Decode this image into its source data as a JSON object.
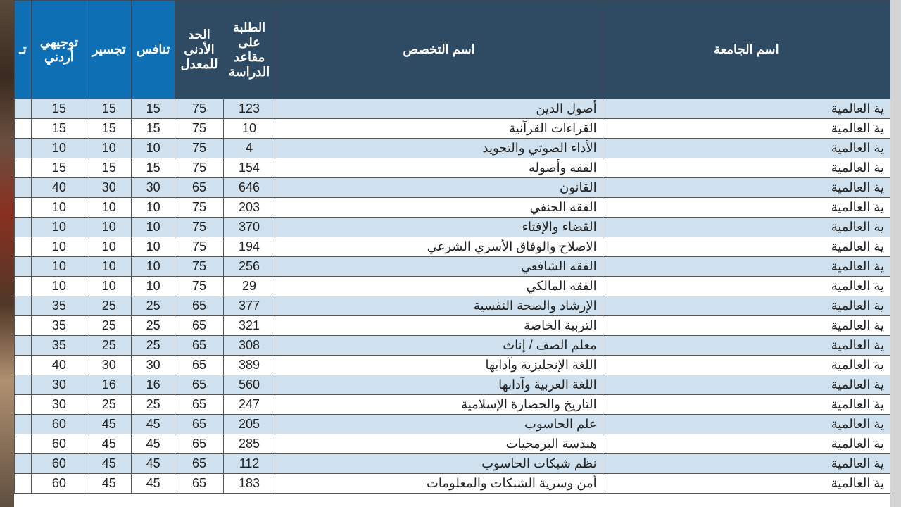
{
  "colors": {
    "header_dark": "#2f4a63",
    "header_light": "#0f6fb5",
    "row_even": "#cfe1ee",
    "row_odd": "#ffffff",
    "grid": "#555555",
    "header_text": "#ffffff",
    "cell_text": "#222222"
  },
  "typography": {
    "header_fontsize_pt": 14,
    "cell_fontsize_pt": 14,
    "font_family": "Arial"
  },
  "table": {
    "type": "table",
    "columns": [
      {
        "key": "university",
        "label": "اسم الجامعة",
        "header_style": "dark",
        "align": "right"
      },
      {
        "key": "specialty",
        "label": "اسم التخصص",
        "header_style": "dark",
        "align": "right"
      },
      {
        "key": "seats",
        "label": "الطلبة على مقاعد الدراسة",
        "header_style": "dark",
        "align": "center"
      },
      {
        "key": "min_gpa",
        "label": "الحد الأدنى للمعدل",
        "header_style": "dark",
        "align": "center"
      },
      {
        "key": "compete",
        "label": "تنافس",
        "header_style": "light",
        "align": "center"
      },
      {
        "key": "bridging",
        "label": "تجسير",
        "header_style": "light",
        "align": "center"
      },
      {
        "key": "tawjihi",
        "label": "توجيهي أردني",
        "header_style": "light",
        "align": "center"
      },
      {
        "key": "edge",
        "label": "تـ",
        "header_style": "light",
        "align": "center"
      }
    ],
    "rows": [
      {
        "university": "ية العالمية",
        "specialty": "أصول الدين",
        "seats": 123,
        "min_gpa": 75,
        "compete": 15,
        "bridging": 15,
        "tawjihi": 15
      },
      {
        "university": "ية العالمية",
        "specialty": "القراءات القرآنية",
        "seats": 10,
        "min_gpa": 75,
        "compete": 15,
        "bridging": 15,
        "tawjihi": 15
      },
      {
        "university": "ية العالمية",
        "specialty": "الأداء الصوتي والتجويد",
        "seats": 4,
        "min_gpa": 75,
        "compete": 10,
        "bridging": 10,
        "tawjihi": 10
      },
      {
        "university": "ية العالمية",
        "specialty": "الفقه وأصوله",
        "seats": 154,
        "min_gpa": 75,
        "compete": 15,
        "bridging": 15,
        "tawjihi": 15
      },
      {
        "university": "ية العالمية",
        "specialty": "القانون",
        "seats": 646,
        "min_gpa": 65,
        "compete": 30,
        "bridging": 30,
        "tawjihi": 40
      },
      {
        "university": "ية العالمية",
        "specialty": "الفقه الحنفي",
        "seats": 203,
        "min_gpa": 75,
        "compete": 10,
        "bridging": 10,
        "tawjihi": 10
      },
      {
        "university": "ية العالمية",
        "specialty": "القضاء والإفتاء",
        "seats": 370,
        "min_gpa": 75,
        "compete": 10,
        "bridging": 10,
        "tawjihi": 10
      },
      {
        "university": "ية العالمية",
        "specialty": "الاصلاح والوفاق الأسري الشرعي",
        "seats": 194,
        "min_gpa": 75,
        "compete": 10,
        "bridging": 10,
        "tawjihi": 10
      },
      {
        "university": "ية العالمية",
        "specialty": "الفقه الشافعي",
        "seats": 256,
        "min_gpa": 75,
        "compete": 10,
        "bridging": 10,
        "tawjihi": 10
      },
      {
        "university": "ية العالمية",
        "specialty": "الفقه المالكي",
        "seats": 29,
        "min_gpa": 75,
        "compete": 10,
        "bridging": 10,
        "tawjihi": 10
      },
      {
        "university": "ية العالمية",
        "specialty": "الإرشاد والصحة النفسية",
        "seats": 377,
        "min_gpa": 65,
        "compete": 25,
        "bridging": 25,
        "tawjihi": 35
      },
      {
        "university": "ية العالمية",
        "specialty": "التربية الخاصة",
        "seats": 321,
        "min_gpa": 65,
        "compete": 25,
        "bridging": 25,
        "tawjihi": 35
      },
      {
        "university": "ية العالمية",
        "specialty": "معلم الصف / إناث",
        "seats": 308,
        "min_gpa": 65,
        "compete": 25,
        "bridging": 25,
        "tawjihi": 35
      },
      {
        "university": "ية العالمية",
        "specialty": "اللغة الإنجليزية وآدابها",
        "seats": 389,
        "min_gpa": 65,
        "compete": 30,
        "bridging": 30,
        "tawjihi": 40
      },
      {
        "university": "ية العالمية",
        "specialty": "اللغة العربية وآدابها",
        "seats": 560,
        "min_gpa": 65,
        "compete": 16,
        "bridging": 16,
        "tawjihi": 30
      },
      {
        "university": "ية العالمية",
        "specialty": "التاريخ والحضارة الإسلامية",
        "seats": 247,
        "min_gpa": 65,
        "compete": 25,
        "bridging": 25,
        "tawjihi": 30
      },
      {
        "university": "ية العالمية",
        "specialty": "علم الحاسوب",
        "seats": 205,
        "min_gpa": 65,
        "compete": 45,
        "bridging": 45,
        "tawjihi": 60
      },
      {
        "university": "ية العالمية",
        "specialty": "هندسة البرمجيات",
        "seats": 285,
        "min_gpa": 65,
        "compete": 45,
        "bridging": 45,
        "tawjihi": 60
      },
      {
        "university": "ية العالمية",
        "specialty": "نظم شبكات الحاسوب",
        "seats": 112,
        "min_gpa": 65,
        "compete": 45,
        "bridging": 45,
        "tawjihi": 60
      },
      {
        "university": "ية العالمية",
        "specialty": "أمن وسرية الشبكات والمعلومات",
        "seats": 183,
        "min_gpa": 65,
        "compete": 45,
        "bridging": 45,
        "tawjihi": 60
      }
    ]
  }
}
